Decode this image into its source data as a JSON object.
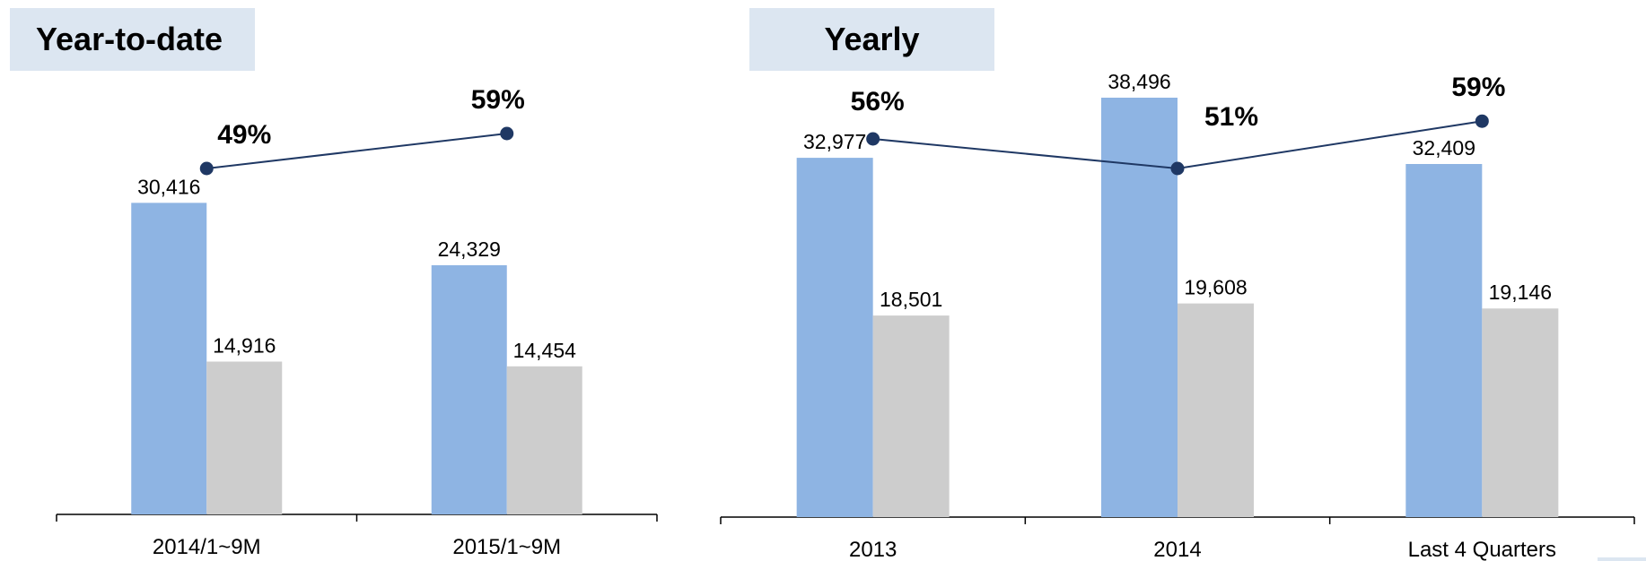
{
  "colors": {
    "series_a": "#8eb4e3",
    "series_b": "#cdcdcd",
    "ratio_line": "#1f3864",
    "title_bg": "#dce6f1"
  },
  "chart_data": [
    {
      "type": "bar",
      "title": "Year-to-date",
      "categories": [
        "2014/1~9M",
        "2015/1~9M"
      ],
      "series": [
        {
          "values": [
            30416,
            24329
          ]
        },
        {
          "values": [
            14916,
            14454
          ]
        }
      ],
      "value_labels": [
        [
          "30,416",
          "24,329"
        ],
        [
          "14,916",
          "14,454"
        ]
      ],
      "ratio": {
        "type": "line",
        "values": [
          49,
          59
        ],
        "labels": [
          "49%",
          "59%"
        ]
      },
      "ylim": [
        0,
        42000
      ]
    },
    {
      "type": "bar",
      "title": "Yearly",
      "categories": [
        "2013",
        "2014",
        "Last 4 Quarters"
      ],
      "series": [
        {
          "values": [
            32977,
            38496,
            32409
          ]
        },
        {
          "values": [
            18501,
            19608,
            19146
          ]
        }
      ],
      "value_labels": [
        [
          "32,977",
          "38,496",
          "32,409"
        ],
        [
          "18,501",
          "19,608",
          "19,146"
        ]
      ],
      "ratio": {
        "type": "line",
        "values": [
          56,
          51,
          59
        ],
        "labels": [
          "56%",
          "51%",
          "59%"
        ]
      },
      "ylim": [
        0,
        42000
      ]
    }
  ]
}
